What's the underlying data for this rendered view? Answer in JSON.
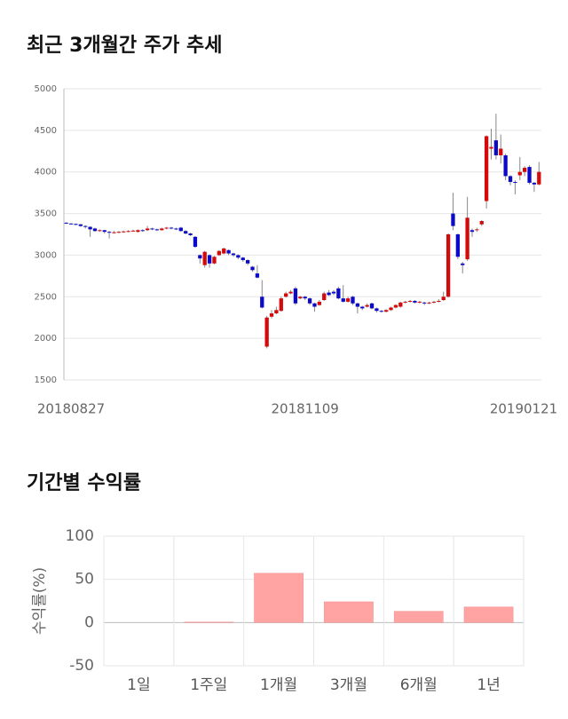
{
  "chart_data": [
    {
      "type": "candlestick",
      "title": "최근 3개월간 주가 추세",
      "categories": [
        "20180827",
        null,
        null,
        null,
        null,
        null,
        null,
        null,
        null,
        null,
        null,
        null,
        null,
        null,
        null,
        null,
        null,
        null,
        null,
        null,
        null,
        null,
        null,
        null,
        null,
        null,
        null,
        null,
        null,
        null,
        null,
        null,
        null,
        null,
        null,
        null,
        null,
        null,
        null,
        null,
        null,
        null,
        null,
        null,
        null,
        null,
        null,
        null,
        null,
        null,
        "20181109",
        null,
        null,
        null,
        null,
        null,
        null,
        null,
        null,
        null,
        null,
        null,
        null,
        null,
        null,
        null,
        null,
        null,
        null,
        null,
        null,
        null,
        null,
        null,
        null,
        null,
        null,
        null,
        null,
        null,
        null,
        null,
        null,
        null,
        null,
        null,
        null,
        null,
        null,
        null,
        null,
        null,
        null,
        null,
        null,
        null,
        null,
        null,
        null,
        "20190121"
      ],
      "open": [
        3390,
        3380,
        3375,
        3370,
        3350,
        3340,
        3320,
        3290,
        3300,
        3280,
        3270,
        3275,
        3280,
        3285,
        3290,
        3280,
        3300,
        3300,
        3320,
        3310,
        3300,
        3320,
        3330,
        3320,
        3330,
        3290,
        3260,
        3220,
        3000,
        2880,
        3000,
        2900,
        3000,
        3020,
        3060,
        3020,
        3000,
        2970,
        2940,
        2860,
        2780,
        2500,
        1900,
        2260,
        2300,
        2330,
        2500,
        2540,
        2600,
        2480,
        2500,
        2480,
        2420,
        2400,
        2460,
        2550,
        2560,
        2600,
        2480,
        2440,
        2500,
        2420,
        2380,
        2380,
        2420,
        2360,
        2330,
        2320,
        2340,
        2370,
        2380,
        2430,
        2440,
        2450,
        2430,
        2430,
        2420,
        2430,
        2440,
        2460,
        2500,
        3500,
        3250,
        2900,
        2950,
        3300,
        3300,
        3370,
        3650,
        4280,
        4380,
        4200,
        4200,
        3950,
        3880,
        3960,
        4000,
        4060,
        3870,
        3850
      ],
      "high": [
        3395,
        3385,
        3380,
        3375,
        3360,
        3345,
        3330,
        3310,
        3305,
        3290,
        3290,
        3290,
        3295,
        3300,
        3305,
        3310,
        3310,
        3350,
        3330,
        3320,
        3330,
        3340,
        3340,
        3330,
        3340,
        3300,
        3270,
        3230,
        3010,
        3050,
        3010,
        2990,
        3060,
        3090,
        3070,
        3030,
        3010,
        2980,
        2950,
        2870,
        2880,
        2700,
        2270,
        2340,
        2380,
        2500,
        2560,
        2580,
        2620,
        2510,
        2510,
        2490,
        2430,
        2460,
        2560,
        2580,
        2580,
        2620,
        2640,
        2500,
        2510,
        2430,
        2390,
        2420,
        2430,
        2370,
        2340,
        2350,
        2380,
        2410,
        2440,
        2450,
        2460,
        2460,
        2450,
        2440,
        2440,
        2450,
        2470,
        2560,
        3260,
        3750,
        3260,
        2920,
        3700,
        3320,
        3330,
        3420,
        4440,
        4520,
        4700,
        4450,
        4220,
        3960,
        3900,
        4180,
        4070,
        4080,
        3880,
        4120
      ],
      "low": [
        3375,
        3370,
        3360,
        3340,
        3320,
        3220,
        3280,
        3280,
        3260,
        3200,
        3260,
        3265,
        3270,
        3275,
        3280,
        3270,
        3280,
        3290,
        3300,
        3290,
        3295,
        3310,
        3310,
        3300,
        3280,
        3250,
        3230,
        3090,
        2900,
        2850,
        2850,
        2890,
        2990,
        3010,
        3000,
        2980,
        2950,
        2920,
        2880,
        2800,
        2720,
        2360,
        1880,
        2240,
        2290,
        2320,
        2490,
        2530,
        2400,
        2470,
        2460,
        2400,
        2320,
        2390,
        2450,
        2510,
        2520,
        2470,
        2430,
        2430,
        2400,
        2300,
        2340,
        2370,
        2350,
        2310,
        2310,
        2310,
        2330,
        2360,
        2370,
        2420,
        2430,
        2420,
        2420,
        2400,
        2410,
        2420,
        2430,
        2450,
        2490,
        3300,
        2950,
        2780,
        2930,
        3220,
        3280,
        3350,
        3560,
        4150,
        4150,
        4100,
        3900,
        3840,
        3730,
        3900,
        3950,
        3850,
        3760,
        3840
      ],
      "close": [
        3380,
        3375,
        3370,
        3350,
        3340,
        3310,
        3290,
        3300,
        3280,
        3270,
        3275,
        3280,
        3285,
        3290,
        3295,
        3300,
        3290,
        3320,
        3310,
        3300,
        3320,
        3330,
        3320,
        3310,
        3290,
        3260,
        3240,
        3100,
        2960,
        3040,
        2900,
        2980,
        3050,
        3080,
        3020,
        3000,
        2970,
        2940,
        2900,
        2820,
        2730,
        2370,
        2250,
        2300,
        2340,
        2480,
        2540,
        2560,
        2420,
        2500,
        2480,
        2420,
        2380,
        2440,
        2540,
        2520,
        2540,
        2480,
        2440,
        2480,
        2420,
        2380,
        2360,
        2400,
        2360,
        2330,
        2320,
        2340,
        2370,
        2400,
        2430,
        2440,
        2450,
        2430,
        2440,
        2420,
        2430,
        2440,
        2450,
        2500,
        3250,
        3350,
        2980,
        2880,
        3450,
        3280,
        3310,
        3410,
        4430,
        4300,
        4200,
        4280,
        3950,
        3880,
        3870,
        4000,
        4050,
        3870,
        3850,
        4000
      ],
      "up_color": "#d40a0a",
      "down_color": "#0a0ac8",
      "ylim": [
        1500,
        5000
      ],
      "yticks": [
        1500,
        2000,
        2500,
        3000,
        3500,
        4000,
        4500,
        5000
      ],
      "grid": true
    },
    {
      "type": "bar",
      "title": "기간별 수익률",
      "ylabel": "수익률(%)",
      "categories": [
        "1일",
        "1주일",
        "1개월",
        "3개월",
        "6개월",
        "1년"
      ],
      "values": [
        0,
        0.5,
        57,
        24,
        13,
        18
      ],
      "color": "#ffa3a3",
      "ylim": [
        -50,
        100
      ],
      "yticks": [
        -50,
        0,
        50,
        100
      ],
      "grid": true
    }
  ]
}
